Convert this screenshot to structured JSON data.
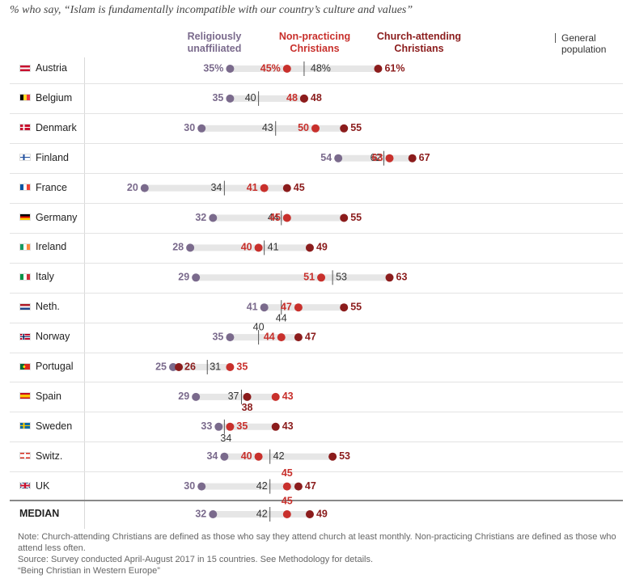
{
  "subtitle": "% who say, “Islam is fundamentally incompatible with our country’s culture and values”",
  "legend": {
    "unaffiliated": "Religiously\nunaffiliated",
    "nonpracticing": "Non-practicing\nChristians",
    "churchgoing": "Church-attending\nChristians",
    "general": "General\npopulation"
  },
  "colors": {
    "unaffiliated": "#7a6a8c",
    "nonpracticing": "#c8302c",
    "churchgoing": "#8b1c1c",
    "range_bar": "#e6e6e6",
    "general_tick": "#555555"
  },
  "chart_data": {
    "type": "dot-range",
    "x_range": [
      0,
      100
    ],
    "series": [
      {
        "key": "unaffiliated",
        "name": "Religiously unaffiliated"
      },
      {
        "key": "nonpracticing",
        "name": "Non-practicing Christians"
      },
      {
        "key": "churchgoing",
        "name": "Church-attending Christians"
      },
      {
        "key": "general",
        "name": "General population"
      }
    ],
    "rows": [
      {
        "country": "Austria",
        "flag": "austria",
        "unaffiliated": 35,
        "nonpracticing": 45,
        "churchgoing": 61,
        "general": 48,
        "labels": {
          "unaffiliated": "35%",
          "nonpracticing": "45%",
          "churchgoing": "61%",
          "general": "48%"
        }
      },
      {
        "country": "Belgium",
        "flag": "belgium",
        "unaffiliated": 35,
        "nonpracticing": 48,
        "churchgoing": 48,
        "general": 40,
        "labels": {
          "unaffiliated": "35",
          "nonpracticing": "48",
          "churchgoing": "48",
          "general": "40"
        }
      },
      {
        "country": "Denmark",
        "flag": "denmark",
        "unaffiliated": 30,
        "nonpracticing": 50,
        "churchgoing": 55,
        "general": 43,
        "labels": {
          "unaffiliated": "30",
          "nonpracticing": "50",
          "churchgoing": "55",
          "general": "43"
        }
      },
      {
        "country": "Finland",
        "flag": "finland",
        "unaffiliated": 54,
        "nonpracticing": 63,
        "churchgoing": 67,
        "general": 62,
        "labels": {
          "unaffiliated": "54",
          "nonpracticing": "63",
          "churchgoing": "67",
          "general": "62"
        }
      },
      {
        "country": "France",
        "flag": "france",
        "unaffiliated": 20,
        "nonpracticing": 41,
        "churchgoing": 45,
        "general": 34,
        "labels": {
          "unaffiliated": "20",
          "nonpracticing": "41",
          "churchgoing": "45",
          "general": "34"
        }
      },
      {
        "country": "Germany",
        "flag": "germany",
        "unaffiliated": 32,
        "nonpracticing": 45,
        "churchgoing": 55,
        "general": 44,
        "labels": {
          "unaffiliated": "32",
          "nonpracticing": "45",
          "churchgoing": "55",
          "general": "44"
        }
      },
      {
        "country": "Ireland",
        "flag": "ireland",
        "unaffiliated": 28,
        "nonpracticing": 40,
        "churchgoing": 49,
        "general": 41,
        "labels": {
          "unaffiliated": "28",
          "nonpracticing": "40",
          "churchgoing": "49",
          "general": "41"
        }
      },
      {
        "country": "Italy",
        "flag": "italy",
        "unaffiliated": 29,
        "nonpracticing": 51,
        "churchgoing": 63,
        "general": 53,
        "labels": {
          "unaffiliated": "29",
          "nonpracticing": "51",
          "churchgoing": "63",
          "general": "53"
        }
      },
      {
        "country": "Neth.",
        "flag": "netherlands",
        "unaffiliated": 41,
        "nonpracticing": 47,
        "churchgoing": 55,
        "general": 44,
        "labels": {
          "unaffiliated": "41",
          "nonpracticing": "47",
          "churchgoing": "55",
          "general": "44"
        }
      },
      {
        "country": "Norway",
        "flag": "norway",
        "unaffiliated": 35,
        "nonpracticing": 44,
        "churchgoing": 47,
        "general": 40,
        "labels": {
          "unaffiliated": "35",
          "nonpracticing": "44",
          "churchgoing": "47",
          "general": "40"
        }
      },
      {
        "country": "Portugal",
        "flag": "portugal",
        "unaffiliated": 25,
        "nonpracticing": 35,
        "churchgoing": 26,
        "general": 31,
        "labels": {
          "unaffiliated": "25",
          "nonpracticing": "35",
          "churchgoing": "26",
          "general": "31"
        }
      },
      {
        "country": "Spain",
        "flag": "spain",
        "unaffiliated": 29,
        "nonpracticing": 43,
        "churchgoing": 38,
        "general": 37,
        "labels": {
          "unaffiliated": "29",
          "nonpracticing": "43",
          "churchgoing": "38",
          "general": "37"
        }
      },
      {
        "country": "Sweden",
        "flag": "sweden",
        "unaffiliated": 33,
        "nonpracticing": 35,
        "churchgoing": 43,
        "general": 34,
        "labels": {
          "unaffiliated": "33",
          "nonpracticing": "35",
          "churchgoing": "43",
          "general": "34"
        }
      },
      {
        "country": "Switz.",
        "flag": "switzerland",
        "unaffiliated": 34,
        "nonpracticing": 40,
        "churchgoing": 53,
        "general": 42,
        "labels": {
          "unaffiliated": "34",
          "nonpracticing": "40",
          "churchgoing": "53",
          "general": "42"
        }
      },
      {
        "country": "UK",
        "flag": "uk",
        "unaffiliated": 30,
        "nonpracticing": 45,
        "churchgoing": 47,
        "general": 42,
        "labels": {
          "unaffiliated": "30",
          "nonpracticing": "45",
          "churchgoing": "47",
          "general": "42"
        }
      },
      {
        "country": "MEDIAN",
        "flag": "",
        "unaffiliated": 32,
        "nonpracticing": 45,
        "churchgoing": 49,
        "general": 42,
        "labels": {
          "unaffiliated": "32",
          "nonpracticing": "45",
          "churchgoing": "49",
          "general": "42"
        }
      }
    ]
  },
  "notes": {
    "note": "Note: Church-attending Christians are defined as those who say they attend church at least monthly. Non-practicing Christians are defined as those who attend less often.",
    "source": "Source: Survey conducted April-August 2017 in 15 countries. See Methodology for details.",
    "report": "“Being Christian in Western Europe”"
  }
}
